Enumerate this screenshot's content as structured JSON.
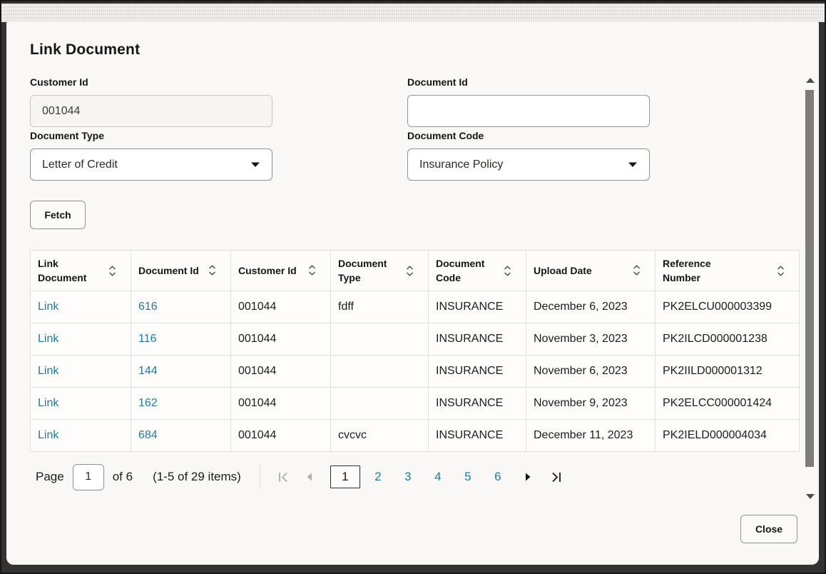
{
  "dialog": {
    "title": "Link Document",
    "fields": {
      "customer_id": {
        "label": "Customer Id",
        "value": "001044"
      },
      "document_id": {
        "label": "Document Id",
        "value": ""
      },
      "document_type": {
        "label": "Document Type",
        "value": "Letter of Credit"
      },
      "document_code": {
        "label": "Document Code",
        "value": "Insurance Policy"
      }
    },
    "buttons": {
      "fetch": "Fetch",
      "close": "Close"
    }
  },
  "table": {
    "columns": [
      "Link Document",
      "Document Id",
      "Customer Id",
      "Document Type",
      "Document Code",
      "Upload Date",
      "Reference Number"
    ],
    "rows": [
      {
        "link": "Link",
        "document_id": "616",
        "customer_id": "001044",
        "document_type": "fdff",
        "document_code": "INSURANCE",
        "upload_date": "December 6, 2023",
        "reference_number": "PK2ELCU000003399"
      },
      {
        "link": "Link",
        "document_id": "116",
        "customer_id": "001044",
        "document_type": "",
        "document_code": "INSURANCE",
        "upload_date": "November 3, 2023",
        "reference_number": "PK2ILCD000001238"
      },
      {
        "link": "Link",
        "document_id": "144",
        "customer_id": "001044",
        "document_type": "",
        "document_code": "INSURANCE",
        "upload_date": "November 6, 2023",
        "reference_number": "PK2IILD000001312"
      },
      {
        "link": "Link",
        "document_id": "162",
        "customer_id": "001044",
        "document_type": "",
        "document_code": "INSURANCE",
        "upload_date": "November 9, 2023",
        "reference_number": "PK2ELCC000001424"
      },
      {
        "link": "Link",
        "document_id": "684",
        "customer_id": "001044",
        "document_type": "cvcvc",
        "document_code": "INSURANCE",
        "upload_date": "December 11, 2023",
        "reference_number": "PK2IELD000004034"
      }
    ]
  },
  "pagination": {
    "page_label": "Page",
    "page_input_value": "1",
    "of_label": "of 6",
    "items_label": "(1-5 of 29 items)",
    "pages": [
      "1",
      "2",
      "3",
      "4",
      "5",
      "6"
    ],
    "current_page": "1",
    "icons": [
      "first-page-icon",
      "previous-page-icon",
      "next-page-icon",
      "last-page-icon"
    ]
  },
  "icons": {
    "sort": "sort-chevrons-icon",
    "select_caret": "caret-down-icon",
    "scrollbar": [
      "scroll-up-icon",
      "scroll-down-icon"
    ]
  },
  "colors": {
    "link": "#1f7a9b",
    "modal_bg": "#f9f8f6",
    "text": "#161513",
    "table_border": "#e2e0dd",
    "frame_bg": "#34332f"
  }
}
